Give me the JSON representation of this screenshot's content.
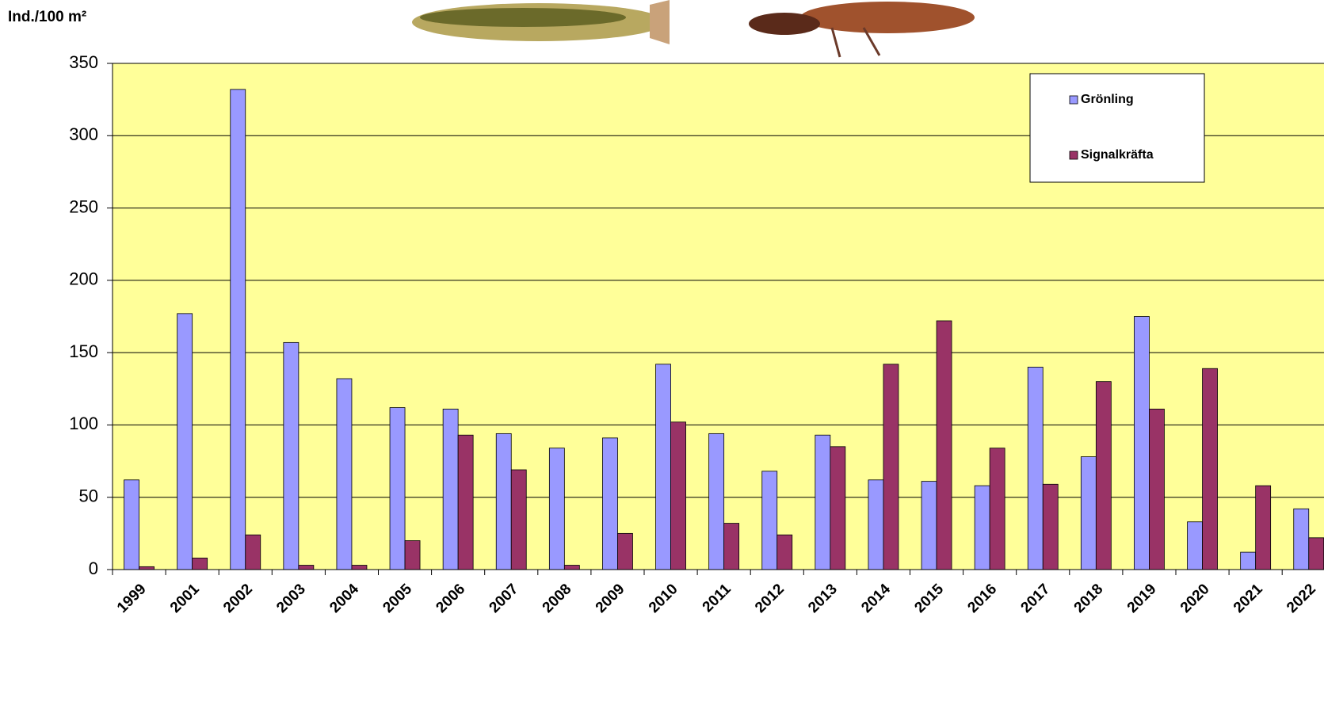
{
  "chart_data": {
    "type": "bar",
    "y_label": "Ind./100 m²",
    "categories": [
      "1999",
      "2001",
      "2002",
      "2003",
      "2004",
      "2005",
      "2006",
      "2007",
      "2008",
      "2009",
      "2010",
      "2011",
      "2012",
      "2013",
      "2014",
      "2015",
      "2016",
      "2017",
      "2018",
      "2019",
      "2020",
      "2021",
      "2022"
    ],
    "series": [
      {
        "name": "Grönling",
        "color": "#9999ff",
        "values": [
          62,
          177,
          332,
          157,
          132,
          112,
          111,
          94,
          84,
          91,
          142,
          94,
          68,
          93,
          62,
          61,
          58,
          140,
          78,
          175,
          33,
          12,
          42
        ]
      },
      {
        "name": "Signalkräfta",
        "color": "#993366",
        "values": [
          2,
          8,
          24,
          3,
          3,
          20,
          93,
          69,
          3,
          25,
          102,
          32,
          24,
          85,
          142,
          172,
          84,
          59,
          130,
          111,
          139,
          58,
          22
        ]
      }
    ],
    "ylim": [
      0,
      350
    ],
    "yticks": [
      0,
      50,
      100,
      150,
      200,
      250,
      300,
      350
    ],
    "grid": true,
    "legend": "top-right"
  }
}
